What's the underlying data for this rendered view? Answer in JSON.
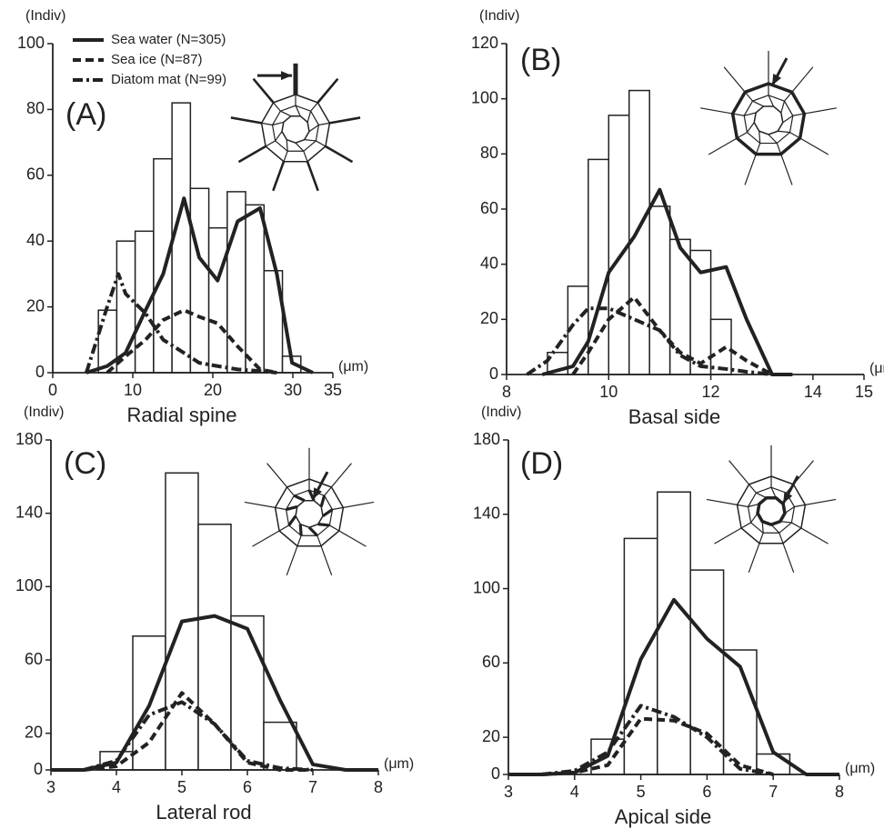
{
  "chart_data": [
    {
      "type": "histogram",
      "panel_label": "(A)",
      "ylabel": "(Indiv)",
      "xlabel": "Radial spine",
      "x_unit": "(μm)",
      "xlim": [
        0,
        35
      ],
      "xticks": [
        0,
        10,
        20,
        30,
        35
      ],
      "ylim": [
        0,
        100
      ],
      "yticks": [
        0,
        20,
        40,
        60,
        80,
        100
      ],
      "bins": [
        5.7,
        8.0,
        10.3,
        12.6,
        14.9,
        17.2,
        19.5,
        21.8,
        24.1,
        26.4,
        28.7,
        31.0
      ],
      "counts": [
        19,
        40,
        43,
        65,
        82,
        56,
        44,
        55,
        51,
        31,
        5
      ],
      "bar_color": "#ffffff",
      "legend": "top-left",
      "series": [
        {
          "name": "Sea water (N=305)",
          "color": "#222222",
          "dash": "solid",
          "x": [
            4.2,
            6.8,
            9.1,
            11.6,
            13.8,
            16.4,
            18.3,
            20.6,
            23.1,
            25.9,
            28,
            29.9,
            32.5
          ],
          "values": [
            0,
            2,
            6,
            19,
            30,
            53,
            35,
            28,
            46,
            50,
            30,
            3,
            0
          ]
        },
        {
          "name": "Sea ice (N=87)",
          "color": "#222222",
          "dash": "dashed",
          "x": [
            6.8,
            9.1,
            11.6,
            13.8,
            16.4,
            18.3,
            20.6,
            23.1,
            25.9,
            28
          ],
          "values": [
            0,
            5,
            10,
            16,
            19,
            17,
            15,
            8,
            1,
            0
          ]
        },
        {
          "name": "Diatom mat (N=99)",
          "color": "#222222",
          "dash": "dashdot",
          "x": [
            4.2,
            6.8,
            8.2,
            9.1,
            11.6,
            13.8,
            16.4,
            18.3,
            20.6,
            23.1,
            25.9,
            28
          ],
          "values": [
            0,
            20,
            30,
            24,
            18,
            10,
            6,
            3,
            2,
            1,
            0.5,
            0
          ]
        }
      ]
    },
    {
      "type": "histogram",
      "panel_label": "(B)",
      "ylabel": "(Indiv)",
      "xlabel": "Basal side",
      "x_unit": "(μm)",
      "xlim": [
        8,
        15
      ],
      "xticks": [
        8,
        10,
        12,
        14,
        15
      ],
      "ylim": [
        0,
        120
      ],
      "yticks": [
        0,
        20,
        40,
        60,
        80,
        100,
        120
      ],
      "bins": [
        8.8,
        9.2,
        9.6,
        10.0,
        10.4,
        10.8,
        11.2,
        11.6,
        12.0,
        12.4
      ],
      "counts": [
        8,
        32,
        78,
        94,
        103,
        61,
        49,
        45,
        20
      ],
      "bar_color": "#ffffff",
      "series": [
        {
          "color": "#222222",
          "dash": "solid",
          "x": [
            8.7,
            9.3,
            9.6,
            10,
            10.5,
            11,
            11.4,
            11.8,
            12.3,
            12.7,
            13.2,
            13.6
          ],
          "values": [
            0,
            3,
            12,
            37,
            50,
            67,
            46,
            37,
            39,
            20,
            0,
            0
          ]
        },
        {
          "color": "#222222",
          "dash": "dashed",
          "x": [
            9.3,
            9.6,
            10,
            10.5,
            11,
            11.4,
            11.8,
            12.3,
            12.7,
            13.2
          ],
          "values": [
            0,
            8,
            20,
            28,
            16,
            8,
            4,
            10,
            5,
            0
          ]
        },
        {
          "color": "#222222",
          "dash": "dashdot",
          "x": [
            8.4,
            8.8,
            9.3,
            9.6,
            10,
            10.5,
            11,
            11.4,
            11.8,
            12.3,
            12.7,
            13.2
          ],
          "values": [
            0,
            5,
            18,
            24,
            24,
            20,
            16,
            7,
            3,
            2,
            1,
            0
          ]
        }
      ]
    },
    {
      "type": "histogram",
      "panel_label": "(C)",
      "ylabel": "(Indiv)",
      "xlabel": "Lateral rod",
      "x_unit": "(μm)",
      "xlim": [
        3,
        8
      ],
      "xticks": [
        3,
        4,
        5,
        6,
        7,
        8
      ],
      "ylim": [
        0,
        180
      ],
      "yticks": [
        0,
        20,
        60,
        100,
        140,
        180
      ],
      "bins": [
        3.75,
        4.25,
        4.75,
        5.25,
        5.75,
        6.25,
        6.75
      ],
      "counts": [
        10,
        73,
        162,
        134,
        84,
        26
      ],
      "bar_color": "#ffffff",
      "series": [
        {
          "color": "#222222",
          "dash": "solid",
          "x": [
            3,
            3.5,
            4,
            4.5,
            5,
            5.5,
            6,
            6.5,
            7,
            7.5,
            8
          ],
          "values": [
            0,
            0,
            4,
            35,
            81,
            84,
            77,
            38,
            3,
            0,
            0
          ]
        },
        {
          "color": "#222222",
          "dash": "dashed",
          "x": [
            3.5,
            4,
            4.5,
            5,
            5.5,
            6,
            6.5,
            7
          ],
          "values": [
            0,
            2,
            15,
            42,
            25,
            4,
            0,
            0
          ]
        },
        {
          "color": "#222222",
          "dash": "dashdot",
          "x": [
            3.5,
            4,
            4.5,
            5,
            5.5,
            6,
            6.5,
            7
          ],
          "values": [
            0,
            5,
            30,
            37,
            25,
            5,
            1,
            0
          ]
        }
      ]
    },
    {
      "type": "histogram",
      "panel_label": "(D)",
      "ylabel": "(Indiv)",
      "xlabel": "Apical side",
      "x_unit": "(μm)",
      "xlim": [
        3,
        8
      ],
      "xticks": [
        3,
        4,
        5,
        6,
        7,
        8
      ],
      "ylim": [
        0,
        180
      ],
      "yticks": [
        0,
        20,
        60,
        100,
        140,
        180
      ],
      "bins": [
        4.25,
        4.75,
        5.25,
        5.75,
        6.25,
        6.75,
        7.25
      ],
      "counts": [
        19,
        127,
        152,
        110,
        67,
        11
      ],
      "bar_color": "#ffffff",
      "series": [
        {
          "color": "#222222",
          "dash": "solid",
          "x": [
            3,
            3.5,
            4,
            4.5,
            5,
            5.5,
            6,
            6.5,
            7,
            7.5,
            8
          ],
          "values": [
            0,
            0,
            1,
            10,
            62,
            94,
            73,
            58,
            12,
            0,
            0
          ]
        },
        {
          "color": "#222222",
          "dash": "dashed",
          "x": [
            3.5,
            4,
            4.5,
            5,
            5.5,
            6,
            6.5,
            7
          ],
          "values": [
            0,
            1,
            5,
            30,
            29,
            22,
            5,
            0
          ]
        },
        {
          "color": "#222222",
          "dash": "dashdot",
          "x": [
            3.5,
            4,
            4.5,
            5,
            5.5,
            6,
            6.5,
            7
          ],
          "values": [
            0,
            2,
            12,
            37,
            31,
            20,
            3,
            0
          ]
        }
      ]
    }
  ]
}
